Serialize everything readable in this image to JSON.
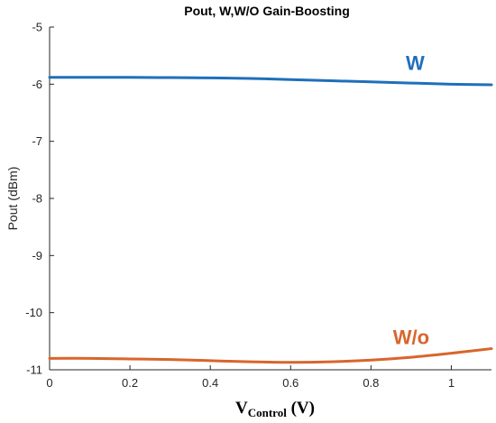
{
  "chart_data": {
    "type": "line",
    "title": "Pout, W,W/O Gain-Boosting",
    "xlabel": {
      "main": "V",
      "sub": "Control",
      "unit": " (V)"
    },
    "ylabel": "Pout (dBm)",
    "xlim": [
      0,
      1.1
    ],
    "ylim": [
      -11,
      -5
    ],
    "xticks": [
      0,
      0.2,
      0.4,
      0.6,
      0.8,
      1
    ],
    "xtick_labels": [
      "0",
      "0.2",
      "0.4",
      "0.6",
      "0.8",
      "1"
    ],
    "yticks": [
      -11,
      -10,
      -9,
      -8,
      -7,
      -6,
      -5
    ],
    "ytick_labels": [
      "-11",
      "-10",
      "-9",
      "-8",
      "-7",
      "-6",
      "-5"
    ],
    "grid": false,
    "series": [
      {
        "name": "W",
        "color": "#1f6fba",
        "x": [
          0,
          0.1,
          0.2,
          0.3,
          0.4,
          0.5,
          0.6,
          0.7,
          0.8,
          0.9,
          1.0,
          1.1
        ],
        "y": [
          -5.88,
          -5.88,
          -5.88,
          -5.885,
          -5.89,
          -5.9,
          -5.92,
          -5.94,
          -5.96,
          -5.98,
          -6.0,
          -6.01
        ]
      },
      {
        "name": "W/o",
        "color": "#d9652b",
        "x": [
          0,
          0.1,
          0.2,
          0.3,
          0.4,
          0.5,
          0.6,
          0.7,
          0.8,
          0.9,
          1.0,
          1.1
        ],
        "y": [
          -10.8,
          -10.8,
          -10.81,
          -10.82,
          -10.84,
          -10.86,
          -10.87,
          -10.86,
          -10.83,
          -10.78,
          -10.71,
          -10.63
        ]
      }
    ],
    "annotations": [
      {
        "text": "W",
        "series": 0,
        "x": 0.91,
        "y": -5.75
      },
      {
        "text": "W/o",
        "series": 1,
        "x": 0.9,
        "y": -10.55
      }
    ]
  }
}
